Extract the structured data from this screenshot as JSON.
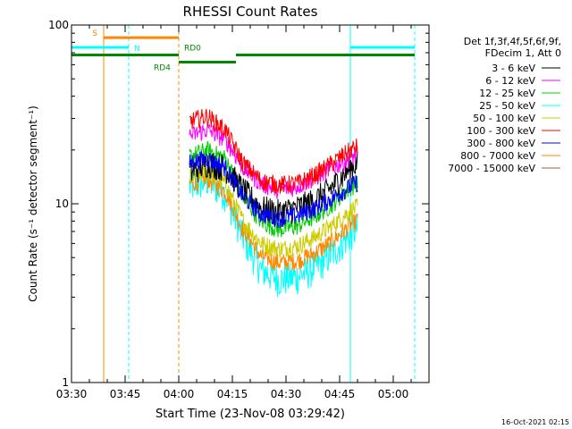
{
  "chart_data": {
    "type": "line",
    "title": "RHESSI Count Rates",
    "xlabel": "Start Time (23-Nov-08 03:29:42)",
    "ylabel": "Count Rate (s⁻¹ detector segment⁻¹)",
    "yscale": "log",
    "ylim": [
      1,
      100
    ],
    "xlim": [
      "03:30",
      "05:10"
    ],
    "x_ticks": [
      "03:30",
      "03:45",
      "04:00",
      "04:15",
      "04:30",
      "04:45",
      "05:00"
    ],
    "y_ticks": [
      "1",
      "10",
      "100"
    ],
    "footer": "16-Oct-2021 02:15",
    "legend_header": [
      "Det 1f,3f,4f,5f,6f,9f,",
      "FDecim 1, Att 0"
    ],
    "legend_placement": "right",
    "series": [
      {
        "name": "3 - 6 keV",
        "color": "#000000",
        "x": [
          "04:03",
          "04:08",
          "04:13",
          "04:18",
          "04:23",
          "04:28",
          "04:33",
          "04:38",
          "04:43",
          "04:48",
          "04:50"
        ],
        "y": [
          15,
          17,
          16,
          12,
          9.5,
          9,
          9.5,
          10.5,
          12.5,
          16,
          17
        ]
      },
      {
        "name": "6 - 12 keV",
        "color": "#ff00ff",
        "x": [
          "04:03",
          "04:08",
          "04:13",
          "04:18",
          "04:23",
          "04:28",
          "04:33",
          "04:38",
          "04:43",
          "04:48",
          "04:50"
        ],
        "y": [
          24,
          26,
          23,
          16,
          13,
          12,
          12.5,
          14,
          16,
          18,
          19
        ]
      },
      {
        "name": "12 - 25 keV",
        "color": "#00cc00",
        "x": [
          "04:03",
          "04:08",
          "04:13",
          "04:18",
          "04:23",
          "04:28",
          "04:33",
          "04:38",
          "04:43",
          "04:48",
          "04:50"
        ],
        "y": [
          18.5,
          20,
          18,
          11,
          8,
          7.2,
          7.5,
          8.5,
          10,
          12.5,
          13
        ]
      },
      {
        "name": "25 - 50 keV",
        "color": "#00ffff",
        "x": [
          "04:03",
          "04:08",
          "04:13",
          "04:18",
          "04:23",
          "04:28",
          "04:33",
          "04:38",
          "04:43",
          "04:48",
          "04:50"
        ],
        "y": [
          12.5,
          13.5,
          11.5,
          6.5,
          4.3,
          3.8,
          3.9,
          4.4,
          5.3,
          6.8,
          7.3
        ]
      },
      {
        "name": "50 - 100 keV",
        "color": "#cccc00",
        "x": [
          "04:03",
          "04:08",
          "04:13",
          "04:18",
          "04:23",
          "04:28",
          "04:33",
          "04:38",
          "04:43",
          "04:48",
          "04:50"
        ],
        "y": [
          14,
          15,
          13,
          8,
          6,
          5.6,
          5.8,
          6.5,
          7.6,
          9.2,
          9.6
        ]
      },
      {
        "name": "100 - 300 keV",
        "color": "#ff0000",
        "x": [
          "04:03",
          "04:08",
          "04:13",
          "04:18",
          "04:23",
          "04:28",
          "04:33",
          "04:38",
          "04:43",
          "04:48",
          "04:50"
        ],
        "y": [
          29,
          31,
          26,
          17,
          13.5,
          12.8,
          13,
          14.5,
          17,
          20,
          21
        ]
      },
      {
        "name": "300 - 800 keV",
        "color": "#0000ff",
        "x": [
          "04:03",
          "04:08",
          "04:13",
          "04:18",
          "04:23",
          "04:28",
          "04:33",
          "04:38",
          "04:43",
          "04:48",
          "04:50"
        ],
        "y": [
          17,
          18,
          16,
          11,
          8.8,
          8.3,
          8.6,
          9.4,
          10.8,
          12.5,
          13.2
        ]
      },
      {
        "name": "800 - 7000 keV",
        "color": "#ff8800",
        "x": [
          "04:03",
          "04:08",
          "04:13",
          "04:18",
          "04:23",
          "04:28",
          "04:33",
          "04:38",
          "04:43",
          "04:48",
          "04:50"
        ],
        "y": [
          13,
          13.8,
          11.8,
          7.2,
          5.1,
          4.7,
          4.8,
          5.3,
          6.2,
          7.6,
          8.1
        ]
      },
      {
        "name": "7000 - 15000 keV",
        "color": "#996633",
        "x": [],
        "y": []
      }
    ],
    "annotations": [
      {
        "label": "S",
        "color": "#ff8800",
        "x_range": [
          "03:39",
          "04:00"
        ],
        "y": 85
      },
      {
        "label": "N",
        "color": "#00ffff",
        "x_ranges": [
          [
            "03:30",
            "03:46"
          ],
          [
            "04:48",
            "05:06"
          ]
        ],
        "y": 75
      },
      {
        "label": "RD0",
        "color": "#008800",
        "x_ranges": [
          [
            "03:30",
            "04:00"
          ],
          [
            "04:16",
            "05:06"
          ]
        ],
        "y": 68
      },
      {
        "label": "RD4",
        "color": "#008800",
        "x_range": [
          "04:00",
          "04:16"
        ],
        "y": 62
      }
    ],
    "vertical_markers": [
      {
        "x": "03:30",
        "color": "#00ffff",
        "style": "solid"
      },
      {
        "x": "03:39",
        "color": "#ff8800",
        "style": "solid"
      },
      {
        "x": "03:46",
        "color": "#00ffff",
        "style": "dashed"
      },
      {
        "x": "04:00",
        "color": "#ff8800",
        "style": "dashed"
      },
      {
        "x": "04:48",
        "color": "#00ffff",
        "style": "solid"
      },
      {
        "x": "05:06",
        "color": "#00ffff",
        "style": "dashed"
      }
    ]
  }
}
